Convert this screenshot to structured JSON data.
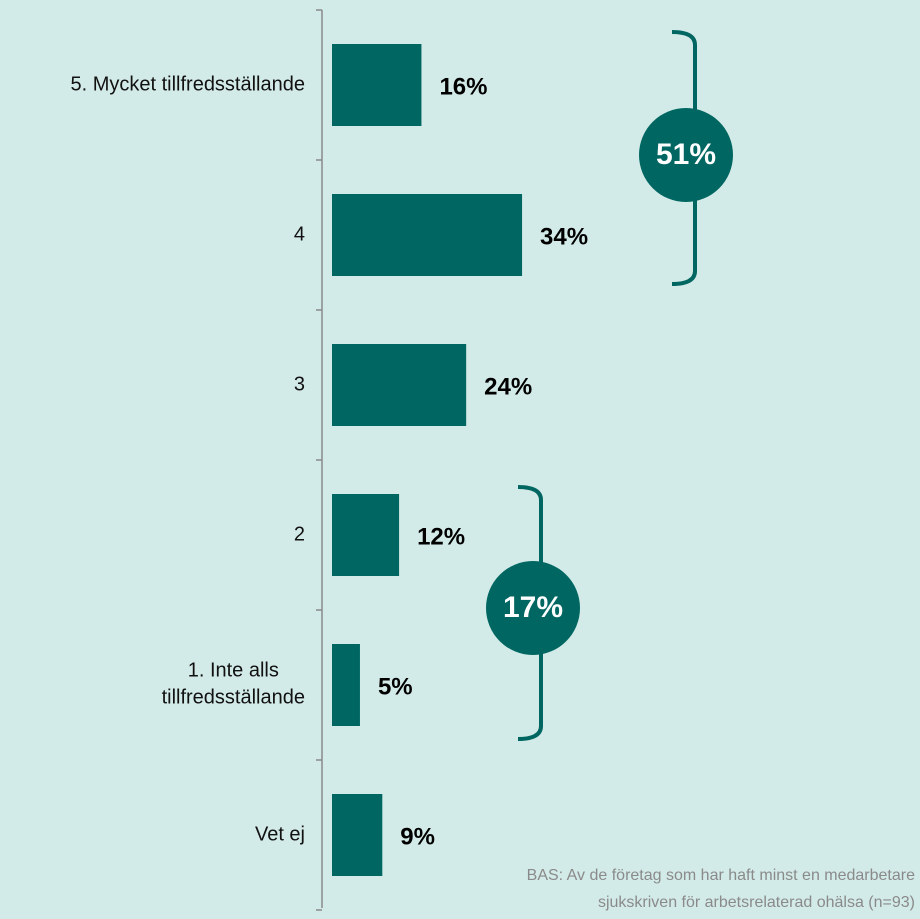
{
  "chart_data": {
    "type": "barh",
    "categories": [
      "5. Mycket tillfredsställande",
      "4",
      "3",
      "2",
      "1. Inte alls\ntillfredsställande",
      "Vet ej"
    ],
    "values": [
      16,
      34,
      24,
      12,
      5,
      9
    ],
    "value_labels": [
      "16%",
      "34%",
      "24%",
      "12%",
      "5%",
      "9%"
    ],
    "color": "#006661",
    "xlim": [
      0,
      100
    ],
    "annotations": [
      "51%",
      "17%"
    ],
    "note": [
      "BAS: Av de företag som har haft minst en medarbetare",
      "sjukskriven för arbetsrelaterad ohälsa (n=93)"
    ]
  }
}
